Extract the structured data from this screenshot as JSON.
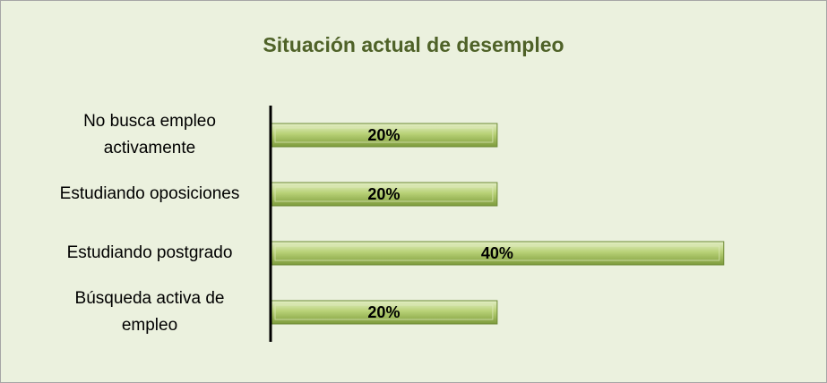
{
  "chart_data": {
    "type": "bar",
    "orientation": "horizontal",
    "title": "Situación actual de desempleo",
    "categories": [
      "No busca empleo activamente",
      "Estudiando oposiciones",
      "Estudiando postgrado",
      "Búsqueda activa de empleo"
    ],
    "values": [
      20,
      20,
      40,
      20
    ],
    "value_labels": [
      "20%",
      "20%",
      "40%",
      "20%"
    ],
    "color": "#9bbb59",
    "xlim": [
      0,
      45
    ]
  }
}
